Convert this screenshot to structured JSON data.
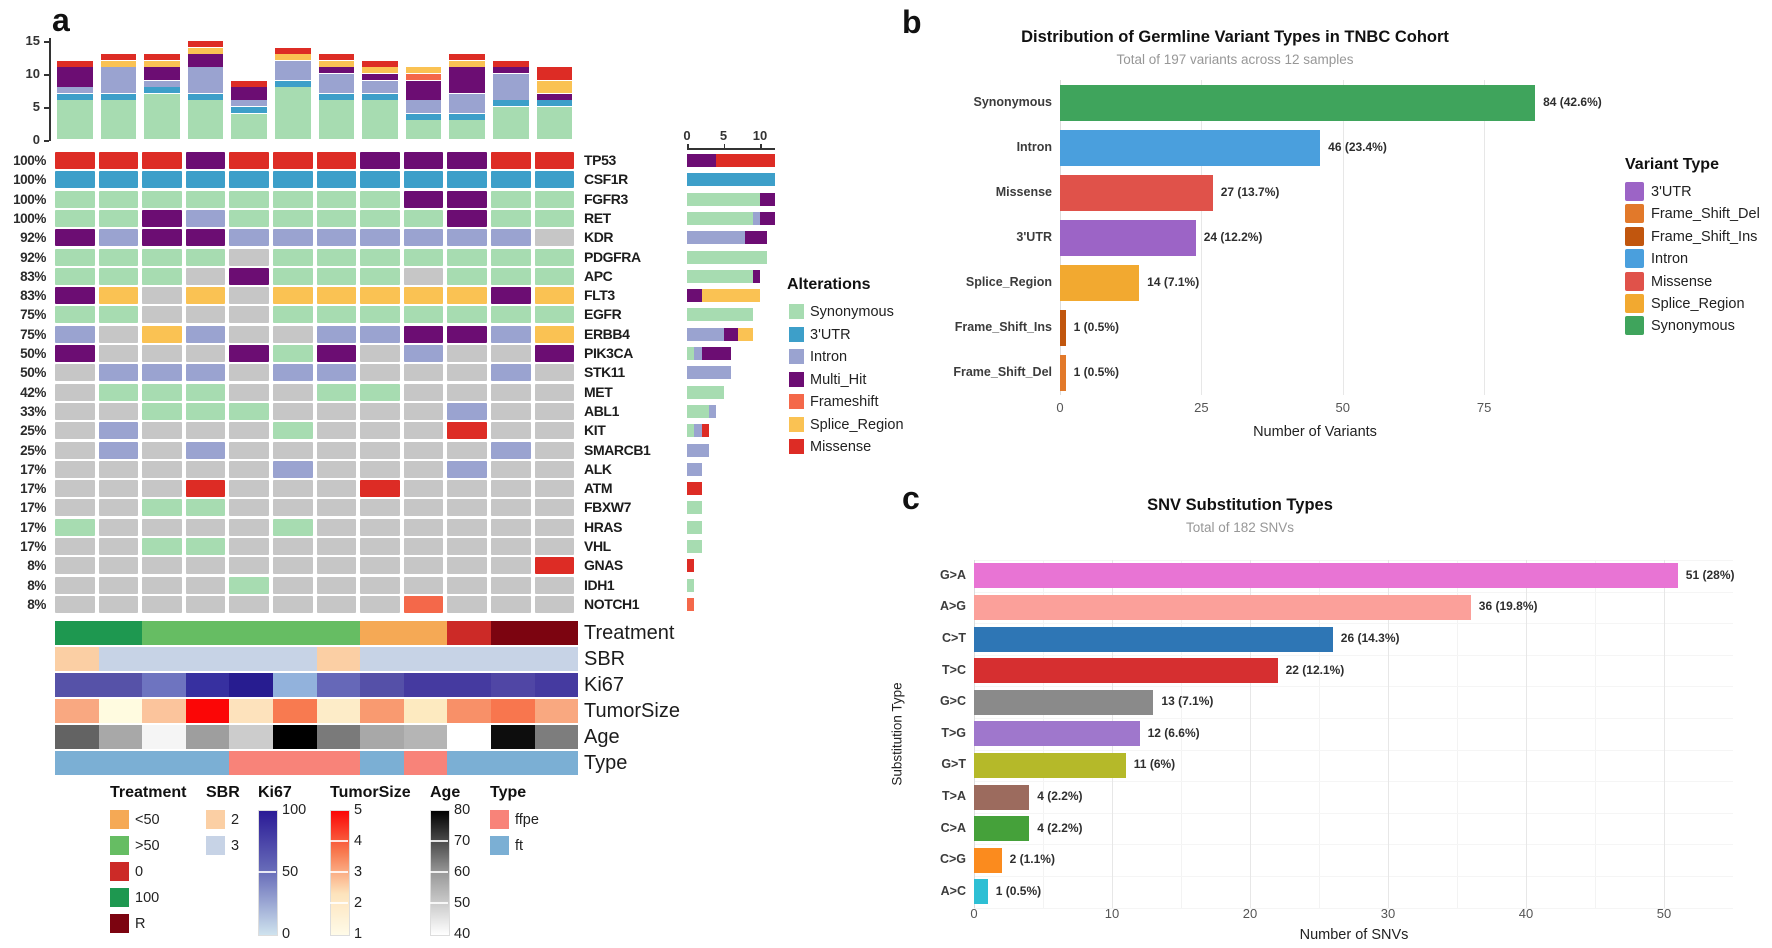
{
  "panels": {
    "a": "a",
    "b": "b",
    "c": "c"
  },
  "chart_data": [
    {
      "id": "oncoprint",
      "type": "heatmap",
      "description": "Oncoprint of alterations across 12 samples with per-sample stacked mutation counts, per-gene frequencies and clinical annotation tracks",
      "samples": 12,
      "yticks": [
        0,
        5,
        10,
        15
      ],
      "side_xticks": [
        0,
        5,
        10
      ],
      "alteration_colors": {
        "S": "#a7dcb1",
        "U": "#3d9fc9",
        "I": "#9aa3d0",
        "M": "#6c0d73",
        "F": "#f4684a",
        "Y": "#fac253",
        "R": "#dd2c25",
        "G": "#c6c6c6"
      },
      "top_bars": [
        [
          [
            "S",
            6
          ],
          [
            "U",
            1
          ],
          [
            "I",
            1
          ],
          [
            "M",
            3
          ],
          [
            "R",
            1
          ]
        ],
        [
          [
            "S",
            6
          ],
          [
            "U",
            1
          ],
          [
            "I",
            4
          ],
          [
            "Y",
            1
          ],
          [
            "R",
            1
          ]
        ],
        [
          [
            "S",
            7
          ],
          [
            "U",
            1
          ],
          [
            "I",
            1
          ],
          [
            "M",
            2
          ],
          [
            "Y",
            1
          ],
          [
            "R",
            1
          ]
        ],
        [
          [
            "S",
            6
          ],
          [
            "U",
            1
          ],
          [
            "I",
            4
          ],
          [
            "M",
            2
          ],
          [
            "Y",
            1
          ],
          [
            "R",
            1
          ]
        ],
        [
          [
            "S",
            4
          ],
          [
            "U",
            1
          ],
          [
            "I",
            1
          ],
          [
            "M",
            2
          ],
          [
            "R",
            1
          ]
        ],
        [
          [
            "S",
            8
          ],
          [
            "U",
            1
          ],
          [
            "I",
            3
          ],
          [
            "Y",
            1
          ],
          [
            "R",
            1
          ]
        ],
        [
          [
            "S",
            6
          ],
          [
            "U",
            1
          ],
          [
            "I",
            3
          ],
          [
            "M",
            1
          ],
          [
            "Y",
            1
          ],
          [
            "R",
            1
          ]
        ],
        [
          [
            "S",
            6
          ],
          [
            "U",
            1
          ],
          [
            "I",
            2
          ],
          [
            "M",
            1
          ],
          [
            "Y",
            1
          ],
          [
            "R",
            1
          ]
        ],
        [
          [
            "S",
            3
          ],
          [
            "U",
            1
          ],
          [
            "I",
            2
          ],
          [
            "M",
            3
          ],
          [
            "F",
            1
          ],
          [
            "Y",
            1
          ]
        ],
        [
          [
            "S",
            3
          ],
          [
            "U",
            1
          ],
          [
            "I",
            3
          ],
          [
            "M",
            4
          ],
          [
            "Y",
            1
          ],
          [
            "R",
            1
          ]
        ],
        [
          [
            "S",
            5
          ],
          [
            "U",
            1
          ],
          [
            "I",
            4
          ],
          [
            "M",
            1
          ],
          [
            "R",
            1
          ]
        ],
        [
          [
            "S",
            5
          ],
          [
            "U",
            1
          ],
          [
            "M",
            1
          ],
          [
            "Y",
            2
          ],
          [
            "R",
            2
          ]
        ]
      ],
      "genes": [
        {
          "name": "TP53",
          "pct": "100%",
          "cells": "RRRMRRRMMMRR",
          "summary": [
            [
              "M",
              4
            ],
            [
              "R",
              8
            ]
          ]
        },
        {
          "name": "CSF1R",
          "pct": "100%",
          "cells": "UUUUUUUUUUUU",
          "summary": [
            [
              "U",
              12
            ]
          ]
        },
        {
          "name": "FGFR3",
          "pct": "100%",
          "cells": "SSSSSSSSMMSS",
          "summary": [
            [
              "S",
              10
            ],
            [
              "M",
              2
            ]
          ]
        },
        {
          "name": "RET",
          "pct": "100%",
          "cells": "SSMISSSSSMSS",
          "summary": [
            [
              "S",
              9
            ],
            [
              "I",
              1
            ],
            [
              "M",
              2
            ]
          ]
        },
        {
          "name": "KDR",
          "pct": "92%",
          "cells": "MIMMIIIIIIIG",
          "summary": [
            [
              "I",
              8
            ],
            [
              "M",
              3
            ]
          ]
        },
        {
          "name": "PDGFRA",
          "pct": "92%",
          "cells": "SSSSGSSSSSSS",
          "summary": [
            [
              "S",
              11
            ]
          ]
        },
        {
          "name": "APC",
          "pct": "83%",
          "cells": "SSSGMSSSGSSS",
          "summary": [
            [
              "S",
              9
            ],
            [
              "M",
              1
            ]
          ]
        },
        {
          "name": "FLT3",
          "pct": "83%",
          "cells": "MYGYGYYYYYMY",
          "summary": [
            [
              "M",
              2
            ],
            [
              "Y",
              8
            ]
          ]
        },
        {
          "name": "EGFR",
          "pct": "75%",
          "cells": "SSGGGSSSSSSS",
          "summary": [
            [
              "S",
              9
            ]
          ]
        },
        {
          "name": "ERBB4",
          "pct": "75%",
          "cells": "IGYIGGIIMMIY",
          "summary": [
            [
              "I",
              5
            ],
            [
              "M",
              2
            ],
            [
              "Y",
              2
            ]
          ]
        },
        {
          "name": "PIK3CA",
          "pct": "50%",
          "cells": "MGGGMSMGIGGM",
          "summary": [
            [
              "S",
              1
            ],
            [
              "I",
              1
            ],
            [
              "M",
              4
            ]
          ]
        },
        {
          "name": "STK11",
          "pct": "50%",
          "cells": "GIIIGIIGGGIG",
          "summary": [
            [
              "I",
              6
            ]
          ]
        },
        {
          "name": "MET",
          "pct": "42%",
          "cells": "GSSSGGSSGGGG",
          "summary": [
            [
              "S",
              5
            ]
          ]
        },
        {
          "name": "ABL1",
          "pct": "33%",
          "cells": "GGSSSGGGGIGG",
          "summary": [
            [
              "S",
              3
            ],
            [
              "I",
              1
            ]
          ]
        },
        {
          "name": "KIT",
          "pct": "25%",
          "cells": "GIGGGSGGGRGG",
          "summary": [
            [
              "S",
              1
            ],
            [
              "I",
              1
            ],
            [
              "R",
              1
            ]
          ]
        },
        {
          "name": "SMARCB1",
          "pct": "25%",
          "cells": "GIGIGGGGGGIG",
          "summary": [
            [
              "I",
              3
            ]
          ]
        },
        {
          "name": "ALK",
          "pct": "17%",
          "cells": "GGGGGIGGGIGG",
          "summary": [
            [
              "I",
              2
            ]
          ]
        },
        {
          "name": "ATM",
          "pct": "17%",
          "cells": "GGGRGGGRGGGG",
          "summary": [
            [
              "R",
              2
            ]
          ]
        },
        {
          "name": "FBXW7",
          "pct": "17%",
          "cells": "GGSSGGGGGGGG",
          "summary": [
            [
              "S",
              2
            ]
          ]
        },
        {
          "name": "HRAS",
          "pct": "17%",
          "cells": "SGGGGSGGGGGG",
          "summary": [
            [
              "S",
              2
            ]
          ]
        },
        {
          "name": "VHL",
          "pct": "17%",
          "cells": "GGSSGGGGGGGG",
          "summary": [
            [
              "S",
              2
            ]
          ]
        },
        {
          "name": "GNAS",
          "pct": "8%",
          "cells": "GGGGGGGGGGGR",
          "summary": [
            [
              "R",
              1
            ]
          ]
        },
        {
          "name": "IDH1",
          "pct": "8%",
          "cells": "GGGGSGGGGGGG",
          "summary": [
            [
              "S",
              1
            ]
          ]
        },
        {
          "name": "NOTCH1",
          "pct": "8%",
          "cells": "GGGGGGGGFGGG",
          "summary": [
            [
              "F",
              1
            ]
          ]
        }
      ],
      "alterations_legend": {
        "title": "Alterations",
        "items": [
          {
            "label": "Synonymous",
            "color": "#a7dcb1"
          },
          {
            "label": "3'UTR",
            "color": "#3d9fc9"
          },
          {
            "label": "Intron",
            "color": "#9aa3d0"
          },
          {
            "label": "Multi_Hit",
            "color": "#6c0d73"
          },
          {
            "label": "Frameshift",
            "color": "#f4684a"
          },
          {
            "label": "Splice_Region",
            "color": "#fac253"
          },
          {
            "label": "Missense",
            "color": "#dd2c25"
          }
        ]
      },
      "annotations": [
        {
          "label": "Treatment",
          "colors": [
            "#1e9850",
            "#1e9850",
            "#66bd63",
            "#66bd63",
            "#66bd63",
            "#66bd63",
            "#66bd63",
            "#f5a955",
            "#f5a955",
            "#cc2a27",
            "#7c0410",
            "#7c0410"
          ]
        },
        {
          "label": "SBR",
          "colors": [
            "#fbcfa4",
            "#c7d3e6",
            "#c7d3e6",
            "#c7d3e6",
            "#c7d3e6",
            "#c7d3e6",
            "#fbcfa4",
            "#c7d3e6",
            "#c7d3e6",
            "#c7d3e6",
            "#c7d3e6",
            "#c7d3e6"
          ]
        },
        {
          "label": "Ki67",
          "colors": [
            "#5652a8",
            "#5652a8",
            "#6e74c0",
            "#3730a0",
            "#271c90",
            "#92b2dc",
            "#6668b8",
            "#5550a8",
            "#453aa0",
            "#453aa0",
            "#5046a5",
            "#453aa0"
          ]
        },
        {
          "label": "TumorSize",
          "colors": [
            "#f9a881",
            "#fffbe0",
            "#fbc49c",
            "#fb0606",
            "#fde2bc",
            "#f87a50",
            "#fdecc8",
            "#f99a70",
            "#fdeac0",
            "#f89068",
            "#f8764e",
            "#f9a880"
          ]
        },
        {
          "label": "Age",
          "colors": [
            "#636363",
            "#a8a8a8",
            "#f5f5f5",
            "#9e9e9e",
            "#cccccc",
            "#000000",
            "#7a7a7a",
            "#a8a8a8",
            "#b5b5b5",
            "#ffffff",
            "#0d0d0d",
            "#7d7d7d"
          ]
        },
        {
          "label": "Type",
          "colors": [
            "#7bafd4",
            "#7bafd4",
            "#7bafd4",
            "#7bafd4",
            "#f88379",
            "#f88379",
            "#f88379",
            "#7bafd4",
            "#f88379",
            "#7bafd4",
            "#7bafd4",
            "#7bafd4"
          ]
        }
      ],
      "annotation_legends": [
        {
          "title": "Treatment",
          "type": "categorical",
          "items": [
            {
              "label": "<50",
              "color": "#f5a955"
            },
            {
              "label": ">50",
              "color": "#66bd63"
            },
            {
              "label": "0",
              "color": "#cc2a27"
            },
            {
              "label": "100",
              "color": "#1e9850"
            },
            {
              "label": "R",
              "color": "#7c0410"
            }
          ]
        },
        {
          "title": "SBR",
          "type": "categorical",
          "items": [
            {
              "label": "2",
              "color": "#fbcfa4"
            },
            {
              "label": "3",
              "color": "#c7d3e6"
            }
          ]
        },
        {
          "title": "Ki67",
          "type": "gradient",
          "stops": [
            "#2a1a96",
            "#6a6fba",
            "#cfe3ee"
          ],
          "ticks": [
            "100",
            "50",
            "0"
          ]
        },
        {
          "title": "TumorSize",
          "type": "gradient",
          "stops": [
            "#fb0606",
            "#f87a50",
            "#fde3bc",
            "#fffbe8"
          ],
          "ticks": [
            "5",
            "4",
            "3",
            "2",
            "1"
          ]
        },
        {
          "title": "Age",
          "type": "gradient",
          "stops": [
            "#000000",
            "#999999",
            "#ffffff"
          ],
          "ticks": [
            "80",
            "70",
            "60",
            "50",
            "40"
          ]
        },
        {
          "title": "Type",
          "type": "categorical",
          "items": [
            {
              "label": "ffpe",
              "color": "#f88379"
            },
            {
              "label": "ft",
              "color": "#7bafd4"
            }
          ]
        }
      ]
    },
    {
      "id": "germline_variants",
      "type": "bar",
      "orientation": "horizontal",
      "title": "Distribution of Germline Variant Types in TNBC Cohort",
      "subtitle": "Total of 197 variants across 12 samples",
      "categories": [
        "Synonymous",
        "Intron",
        "Missense",
        "3'UTR",
        "Splice_Region",
        "Frame_Shift_Ins",
        "Frame_Shift_Del"
      ],
      "values": [
        84,
        46,
        27,
        24,
        14,
        1,
        1
      ],
      "bar_labels": [
        "84 (42.6%)",
        "46 (23.4%)",
        "27 (13.7%)",
        "24 (12.2%)",
        "14 (7.1%)",
        "1 (0.5%)",
        "1 (0.5%)"
      ],
      "colors": [
        "#3fa45c",
        "#4a9fdd",
        "#e0524a",
        "#9c64c6",
        "#f2a930",
        "#c1560e",
        "#e2792a"
      ],
      "xlabel": "Number of Variants",
      "xticks": [
        0,
        25,
        50,
        75
      ],
      "xmax": 90,
      "legend": {
        "title": "Variant Type",
        "items": [
          {
            "label": "3'UTR",
            "color": "#9c64c6"
          },
          {
            "label": "Frame_Shift_Del",
            "color": "#e2792a"
          },
          {
            "label": "Frame_Shift_Ins",
            "color": "#c1560e"
          },
          {
            "label": "Intron",
            "color": "#4a9fdd"
          },
          {
            "label": "Missense",
            "color": "#e0524a"
          },
          {
            "label": "Splice_Region",
            "color": "#f2a930"
          },
          {
            "label": "Synonymous",
            "color": "#3fa45c"
          }
        ]
      }
    },
    {
      "id": "snv_substitutions",
      "type": "bar",
      "orientation": "horizontal",
      "title": "SNV Substitution Types",
      "subtitle": "Total of 182 SNVs",
      "categories": [
        "G>A",
        "A>G",
        "C>T",
        "T>C",
        "G>C",
        "T>G",
        "G>T",
        "T>A",
        "C>A",
        "C>G",
        "A>C"
      ],
      "values": [
        51,
        36,
        26,
        22,
        13,
        12,
        11,
        4,
        4,
        2,
        1
      ],
      "bar_labels": [
        "51 (28%)",
        "36 (19.8%)",
        "26 (14.3%)",
        "22 (12.1%)",
        "13 (7.1%)",
        "12 (6.6%)",
        "11 (6%)",
        "4 (2.2%)",
        "4 (2.2%)",
        "2 (1.1%)",
        "1 (0.5%)"
      ],
      "colors": [
        "#e874d4",
        "#fba09a",
        "#2e76b5",
        "#d62f30",
        "#8a8a8a",
        "#9f77cc",
        "#b5b929",
        "#9c6b5e",
        "#45a13a",
        "#fb8b1e",
        "#2dbfd4"
      ],
      "xlabel": "Number of SNVs",
      "ylabel": "Substitution Type",
      "xticks": [
        0,
        10,
        20,
        30,
        40,
        50
      ],
      "xmax": 55
    }
  ]
}
